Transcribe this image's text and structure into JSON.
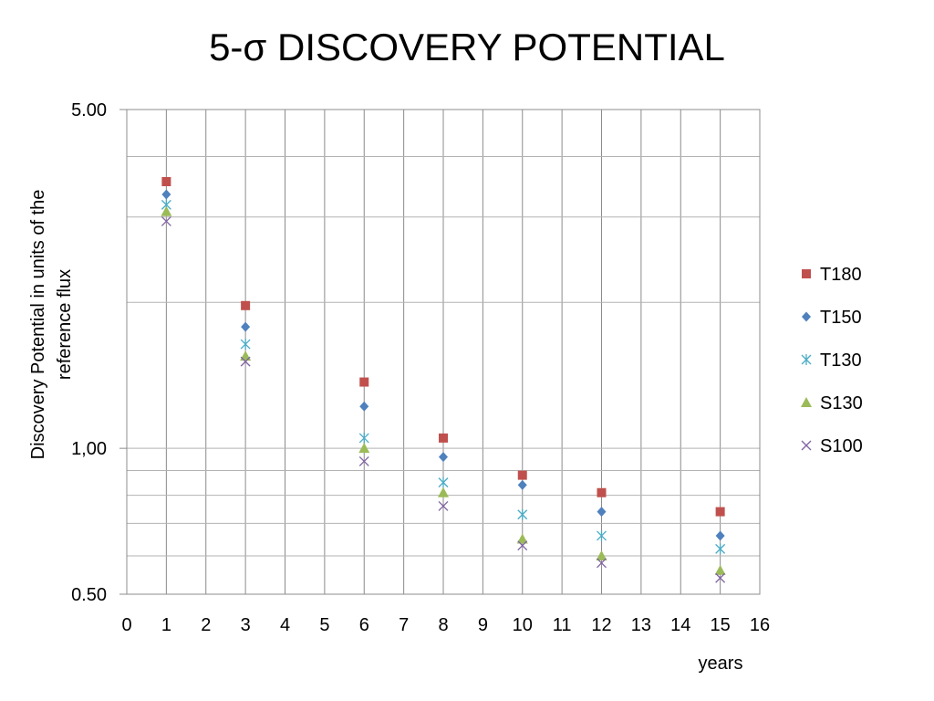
{
  "chart_data": {
    "type": "scatter",
    "title": "5-σ DISCOVERY POTENTIAL",
    "xlabel": "years",
    "ylabel_lines": [
      "Discovery Potential in units of the",
      "reference flux"
    ],
    "x_scale": "linear",
    "y_scale": "log",
    "xlim": [
      0,
      16
    ],
    "ylim": [
      0.5,
      5.0
    ],
    "x_ticks": [
      "0",
      "1",
      "2",
      "3",
      "4",
      "5",
      "6",
      "7",
      "8",
      "9",
      "10",
      "11",
      "12",
      "13",
      "14",
      "15",
      "16"
    ],
    "y_tick_labels": [
      {
        "value": 5.0,
        "label": "5.00"
      },
      {
        "value": 1.0,
        "label": "1,00"
      },
      {
        "value": 0.5,
        "label": "0.50"
      }
    ],
    "grid": true,
    "legend_position": "right",
    "series": [
      {
        "name": "T180",
        "marker": "square",
        "color": "#c0504d",
        "x": [
          1,
          3,
          6,
          8,
          10,
          12,
          15
        ],
        "y": [
          3.55,
          1.97,
          1.37,
          1.05,
          0.88,
          0.81,
          0.74
        ]
      },
      {
        "name": "T150",
        "marker": "diamond",
        "color": "#4f81bd",
        "x": [
          1,
          3,
          6,
          8,
          10,
          12,
          15
        ],
        "y": [
          3.34,
          1.78,
          1.22,
          0.96,
          0.84,
          0.74,
          0.66
        ]
      },
      {
        "name": "T130",
        "marker": "asterisk",
        "color": "#4bacc6",
        "x": [
          1,
          3,
          6,
          8,
          10,
          12,
          15
        ],
        "y": [
          3.18,
          1.64,
          1.05,
          0.85,
          0.73,
          0.66,
          0.62
        ]
      },
      {
        "name": "S130",
        "marker": "triangle",
        "color": "#9bbb59",
        "x": [
          1,
          3,
          6,
          8,
          10,
          12,
          15
        ],
        "y": [
          3.08,
          1.55,
          1.0,
          0.81,
          0.65,
          0.6,
          0.56
        ]
      },
      {
        "name": "S100",
        "marker": "x",
        "color": "#8064a2",
        "x": [
          1,
          3,
          6,
          8,
          10,
          12,
          15
        ],
        "y": [
          2.94,
          1.51,
          0.94,
          0.76,
          0.63,
          0.58,
          0.54
        ]
      }
    ]
  }
}
